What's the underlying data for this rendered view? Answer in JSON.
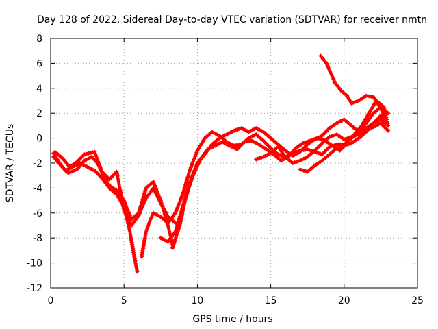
{
  "chart_data": {
    "type": "scatter",
    "title": "Day 128 of 2022, Sidereal Day-to-day VTEC variation (SDTVAR) for receiver nmtn",
    "xlabel": "GPS time / hours",
    "ylabel": "SDTVAR / TECUs",
    "xlim": [
      0,
      25
    ],
    "ylim": [
      -12,
      8
    ],
    "xticks": [
      0,
      5,
      10,
      15,
      20,
      25
    ],
    "yticks": [
      -12,
      -10,
      -8,
      -6,
      -4,
      -2,
      0,
      2,
      4,
      6,
      8
    ],
    "grid": true,
    "marker": "plus",
    "color": "#ff0000",
    "series": [
      {
        "name": "trace-1",
        "x": [
          0.2,
          0.6,
          1.0,
          1.5,
          2.0,
          2.5,
          3.0,
          3.5,
          4.0,
          4.5,
          5.0,
          5.4,
          5.7,
          5.9
        ],
        "y": [
          -1.2,
          -2.0,
          -2.6,
          -2.3,
          -2.0,
          -2.3,
          -2.6,
          -3.2,
          -4.0,
          -4.5,
          -5.5,
          -7.5,
          -9.5,
          -10.7
        ]
      },
      {
        "name": "trace-2",
        "x": [
          0.2,
          0.7,
          1.2,
          1.8,
          2.3,
          2.8,
          3.2,
          3.6,
          4.0,
          4.5,
          5.0,
          5.5,
          6.0,
          6.5,
          7.0,
          7.5,
          8.0,
          8.3
        ],
        "y": [
          -1.5,
          -2.2,
          -2.8,
          -2.5,
          -1.8,
          -1.5,
          -2.0,
          -3.0,
          -3.8,
          -4.2,
          -5.0,
          -6.5,
          -6.0,
          -4.0,
          -3.5,
          -5.0,
          -7.0,
          -8.5
        ]
      },
      {
        "name": "trace-3",
        "x": [
          0.3,
          0.8,
          1.3,
          1.8,
          2.3,
          3.0,
          3.5,
          4.0,
          4.5,
          5.0,
          5.5,
          6.0,
          6.5,
          7.0,
          7.5,
          8.0,
          8.5
        ],
        "y": [
          -1.1,
          -1.6,
          -2.3,
          -1.9,
          -1.3,
          -1.1,
          -2.7,
          -3.3,
          -2.7,
          -5.8,
          -7.0,
          -6.2,
          -4.8,
          -4.0,
          -5.2,
          -6.3,
          -6.8
        ]
      },
      {
        "name": "trace-4",
        "x": [
          6.2,
          6.5,
          6.8,
          7.0,
          7.5,
          8.0,
          8.5,
          9.0,
          9.5,
          10.0,
          10.5,
          11.0,
          11.5,
          12.0,
          12.5,
          13.0,
          13.5,
          14.0,
          14.5,
          15.0,
          15.5,
          16.0,
          16.5,
          17.0,
          17.5,
          18.0,
          18.5,
          19.0,
          19.5,
          20.0,
          20.5,
          21.0,
          21.5,
          22.0,
          22.5,
          23.0
        ],
        "y": [
          -9.5,
          -7.5,
          -6.5,
          -6.0,
          -6.3,
          -6.8,
          -6.0,
          -4.5,
          -2.5,
          -1.0,
          0.0,
          0.5,
          0.2,
          -0.3,
          -0.6,
          -0.5,
          0.0,
          0.3,
          -0.2,
          -0.8,
          -1.3,
          -1.5,
          -1.2,
          -1.0,
          -0.9,
          -1.1,
          -1.3,
          -0.7,
          -0.5,
          -0.5,
          0.0,
          0.5,
          1.2,
          2.0,
          2.5,
          2.0
        ]
      },
      {
        "name": "trace-5",
        "x": [
          7.5,
          8.0,
          8.5,
          9.0,
          9.5,
          10.0,
          10.5,
          11.0,
          11.5,
          12.0,
          12.5,
          13.0,
          13.5,
          14.0,
          14.5,
          15.0,
          15.5,
          16.0,
          16.5,
          17.0,
          17.5,
          18.0,
          18.5,
          19.0,
          19.5,
          20.0,
          20.5,
          21.0,
          21.5,
          22.0,
          22.5,
          23.0
        ],
        "y": [
          -8.0,
          -8.3,
          -7.5,
          -5.5,
          -3.5,
          -2.0,
          -1.3,
          -0.5,
          0.0,
          0.3,
          0.6,
          0.8,
          0.5,
          0.8,
          0.5,
          0.0,
          -0.5,
          -1.0,
          -1.4,
          -1.1,
          -0.5,
          -0.1,
          0.2,
          0.8,
          1.2,
          1.5,
          1.0,
          0.5,
          0.8,
          1.2,
          1.5,
          1.0
        ]
      },
      {
        "name": "trace-6",
        "x": [
          8.3,
          8.8,
          9.2,
          9.7,
          10.2,
          10.7,
          11.2,
          11.7,
          12.2,
          12.7,
          13.2,
          13.7,
          14.2,
          14.7,
          15.2,
          15.7,
          16.2,
          16.7,
          17.2,
          17.7,
          18.2,
          18.7,
          19.2,
          19.7,
          20.2,
          20.7,
          21.2,
          21.7,
          22.2,
          22.7,
          22.9
        ],
        "y": [
          -8.8,
          -7.0,
          -4.8,
          -3.0,
          -1.7,
          -0.9,
          -0.6,
          -0.3,
          -0.6,
          -0.9,
          -0.3,
          -0.2,
          -0.5,
          -0.9,
          -1.3,
          -1.8,
          -1.5,
          -0.8,
          -0.4,
          -0.2,
          0.0,
          -0.2,
          -0.6,
          -1.0,
          -0.4,
          0.3,
          1.0,
          2.0,
          3.0,
          2.5,
          1.5
        ]
      },
      {
        "name": "trace-7",
        "x": [
          14.0,
          14.5,
          15.0,
          15.5,
          16.0,
          16.5,
          17.0,
          17.5,
          18.0,
          18.5,
          19.0,
          19.5,
          20.0,
          20.5,
          21.0,
          21.5,
          22.0,
          22.5,
          23.0
        ],
        "y": [
          -1.7,
          -1.5,
          -1.2,
          -0.7,
          -1.5,
          -2.0,
          -1.8,
          -1.5,
          -1.0,
          -0.4,
          0.1,
          0.3,
          -0.1,
          0.1,
          0.3,
          0.6,
          0.9,
          1.2,
          0.6
        ]
      },
      {
        "name": "trace-8",
        "x": [
          17.0,
          17.5,
          18.0,
          18.5,
          19.0,
          19.5,
          20.0,
          20.5,
          21.0,
          21.5,
          22.0,
          22.5,
          23.0
        ],
        "y": [
          -2.5,
          -2.7,
          -2.2,
          -1.8,
          -1.3,
          -0.8,
          -0.6,
          -0.4,
          0.0,
          0.5,
          1.2,
          1.8,
          1.2
        ]
      },
      {
        "name": "trace-9",
        "x": [
          18.4,
          18.8,
          19.1,
          19.4,
          19.8,
          20.2,
          20.5,
          21.0,
          21.5,
          22.0,
          22.5,
          22.8
        ],
        "y": [
          6.6,
          6.0,
          5.2,
          4.4,
          3.8,
          3.4,
          2.8,
          3.0,
          3.4,
          3.3,
          2.4,
          1.6
        ]
      }
    ]
  }
}
